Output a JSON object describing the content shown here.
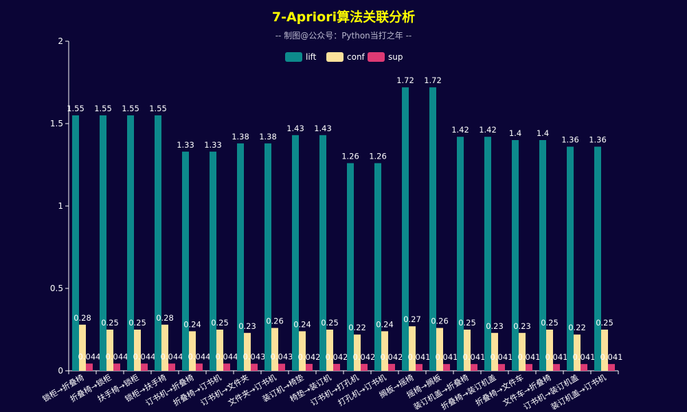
{
  "chart_data": {
    "type": "bar",
    "title": "7-Apriori算法关联分析",
    "subtitle": "-- 制图@公众号：Python当打之年 --",
    "xlabel": "",
    "ylabel": "",
    "ylim": [
      0,
      2
    ],
    "yticks": [
      "0",
      "0.5",
      "1",
      "1.5",
      "2"
    ],
    "legend_position": "top-center",
    "categories": [
      "锁柜→折叠椅",
      "折叠椅→锁柜",
      "扶手椅→锁柜",
      "锁柜→扶手椅",
      "订书机→折叠椅",
      "折叠椅→订书机",
      "订书机→文件夹",
      "文件夹→订书机",
      "装订机→椅垫",
      "椅垫→装订机",
      "订书机→打孔机",
      "打孔机→订书机",
      "搁板→摇椅",
      "摇椅→搁板",
      "装订机盖→折叠椅",
      "折叠椅→装订机盖",
      "折叠椅→文件车",
      "文件车→折叠椅",
      "订书机→装订机盖",
      "装订机盖→订书机"
    ],
    "series": [
      {
        "name": "lift",
        "color": "#0d8a8c",
        "values": [
          1.55,
          1.55,
          1.55,
          1.55,
          1.33,
          1.33,
          1.38,
          1.38,
          1.43,
          1.43,
          1.26,
          1.26,
          1.72,
          1.72,
          1.42,
          1.42,
          1.4,
          1.4,
          1.36,
          1.36
        ],
        "labels": [
          "1.55",
          "1.55",
          "1.55",
          "1.55",
          "1.33",
          "1.33",
          "1.38",
          "1.38",
          "1.43",
          "1.43",
          "1.26",
          "1.26",
          "1.72",
          "1.72",
          "1.42",
          "1.42",
          "1.4",
          "1.4",
          "1.36",
          "1.36"
        ]
      },
      {
        "name": "conf",
        "color": "#fbe19b",
        "values": [
          0.28,
          0.25,
          0.25,
          0.28,
          0.24,
          0.25,
          0.23,
          0.26,
          0.24,
          0.25,
          0.22,
          0.24,
          0.27,
          0.26,
          0.25,
          0.23,
          0.23,
          0.25,
          0.22,
          0.25
        ],
        "labels": [
          "0.28",
          "0.25",
          "0.25",
          "0.28",
          "0.24",
          "0.25",
          "0.23",
          "0.26",
          "0.24",
          "0.25",
          "0.22",
          "0.24",
          "0.27",
          "0.26",
          "0.25",
          "0.23",
          "0.23",
          "0.25",
          "0.22",
          "0.25"
        ]
      },
      {
        "name": "sup",
        "color": "#dd3a74",
        "values": [
          0.044,
          0.044,
          0.044,
          0.044,
          0.044,
          0.044,
          0.043,
          0.043,
          0.042,
          0.042,
          0.042,
          0.042,
          0.041,
          0.041,
          0.041,
          0.041,
          0.041,
          0.041,
          0.041,
          0.041
        ],
        "labels": [
          "0.044",
          "0.044",
          "0.044",
          "0.044",
          "0.044",
          "0.044",
          "0.043",
          "0.043",
          "0.042",
          "0.042",
          "0.042",
          "0.042",
          "0.041",
          "0.041",
          "0.041",
          "0.041",
          "0.041",
          "0.041",
          "0.041",
          "0.041"
        ]
      }
    ]
  },
  "colors": {
    "background": "#0b0536",
    "title": "#ffff00",
    "subtitle": "#b9b8ce",
    "axis": "#ffffff",
    "text": "#ffffff"
  }
}
